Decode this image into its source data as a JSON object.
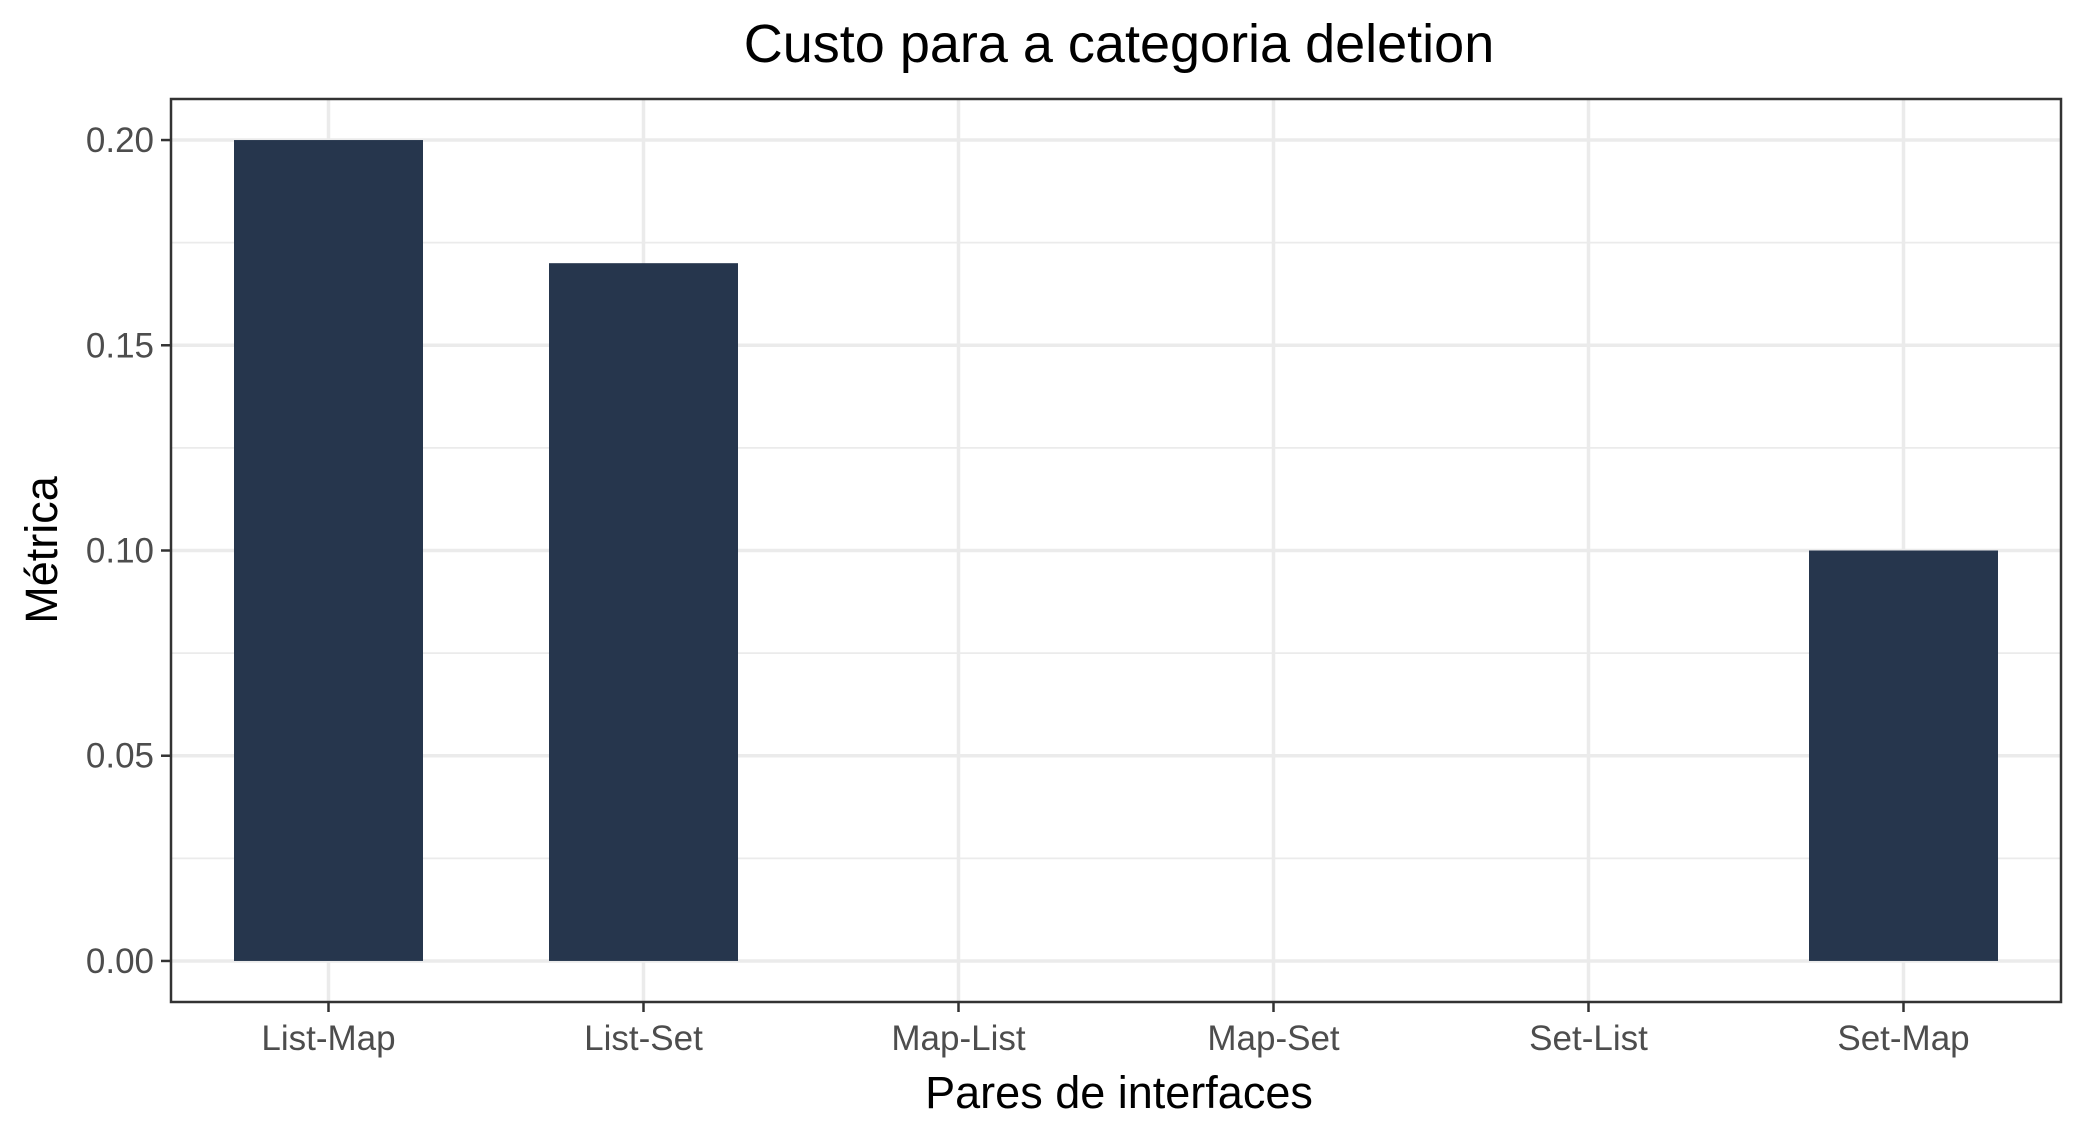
{
  "chart_data": {
    "type": "bar",
    "title": "Custo para a categoria deletion",
    "xlabel": "Pares de interfaces",
    "ylabel": "Métrica",
    "categories": [
      "List-Map",
      "List-Set",
      "Map-List",
      "Map-Set",
      "Set-List",
      "Set-Map"
    ],
    "values": [
      0.2,
      0.17,
      0.0,
      0.0,
      0.0,
      0.1
    ],
    "ylim": [
      -0.01,
      0.21
    ],
    "yticks": [
      0.0,
      0.05,
      0.1,
      0.15,
      0.2
    ],
    "ytick_labels": [
      "0.00",
      "0.05",
      "0.10",
      "0.15",
      "0.20"
    ],
    "grid": true,
    "legend": "none",
    "bar_color": "#26364d"
  }
}
